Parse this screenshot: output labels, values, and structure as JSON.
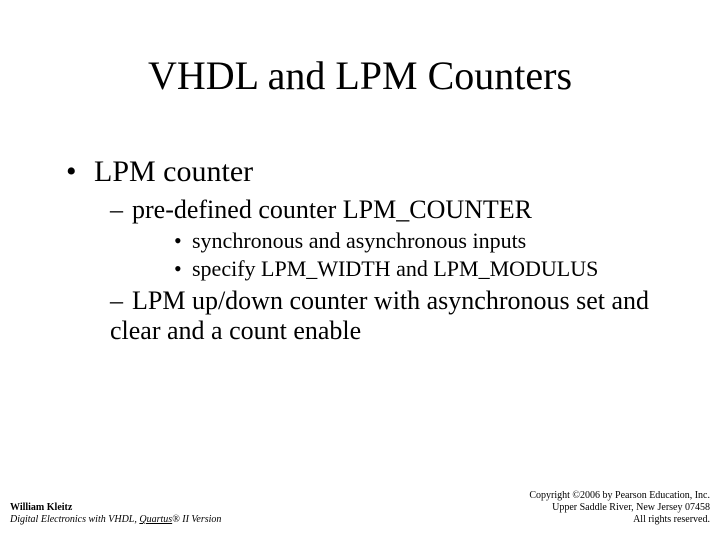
{
  "title": "VHDL and LPM Counters",
  "body": {
    "lvl1": "LPM counter",
    "lvl2a": "pre-defined counter LPM_COUNTER",
    "lvl3a": "synchronous and asynchronous inputs",
    "lvl3b": "specify LPM_WIDTH and LPM_MODULUS",
    "lvl2b": "LPM up/down counter with asynchronous set and clear and a count enable"
  },
  "footer": {
    "author": "William Kleitz",
    "book_prefix": "Digital Electronics with VHDL, ",
    "book_quartus": "Quartus",
    "book_reg": "®",
    "book_suffix": " II Version",
    "copyright_l1": "Copyright ©2006 by Pearson Education, Inc.",
    "copyright_l2": "Upper Saddle River, New Jersey 07458",
    "copyright_l3": "All rights reserved."
  }
}
